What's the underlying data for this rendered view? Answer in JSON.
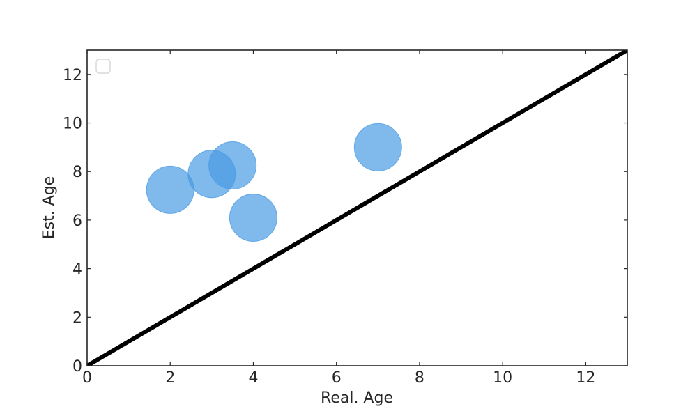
{
  "chart_data": {
    "type": "scatter",
    "xlabel": "Real. Age",
    "ylabel": "Est. Age",
    "xlim": [
      0,
      13
    ],
    "ylim": [
      0,
      13
    ],
    "xticks": [
      0,
      2,
      4,
      6,
      8,
      10,
      12
    ],
    "yticks": [
      0,
      2,
      4,
      6,
      8,
      10,
      12
    ],
    "grid": false,
    "legend": {
      "placement": "upper-left",
      "entries": []
    },
    "series": [
      {
        "kind": "scatter",
        "color": "#4a9be3",
        "points": [
          {
            "x": 2,
            "y": 7.25
          },
          {
            "x": 3,
            "y": 7.9
          },
          {
            "x": 3.5,
            "y": 8.25
          },
          {
            "x": 4,
            "y": 6.1
          },
          {
            "x": 7,
            "y": 9.0
          }
        ]
      },
      {
        "kind": "line",
        "color": "#000000",
        "points": [
          {
            "x": 0,
            "y": 0
          },
          {
            "x": 13,
            "y": 13
          }
        ]
      }
    ]
  }
}
